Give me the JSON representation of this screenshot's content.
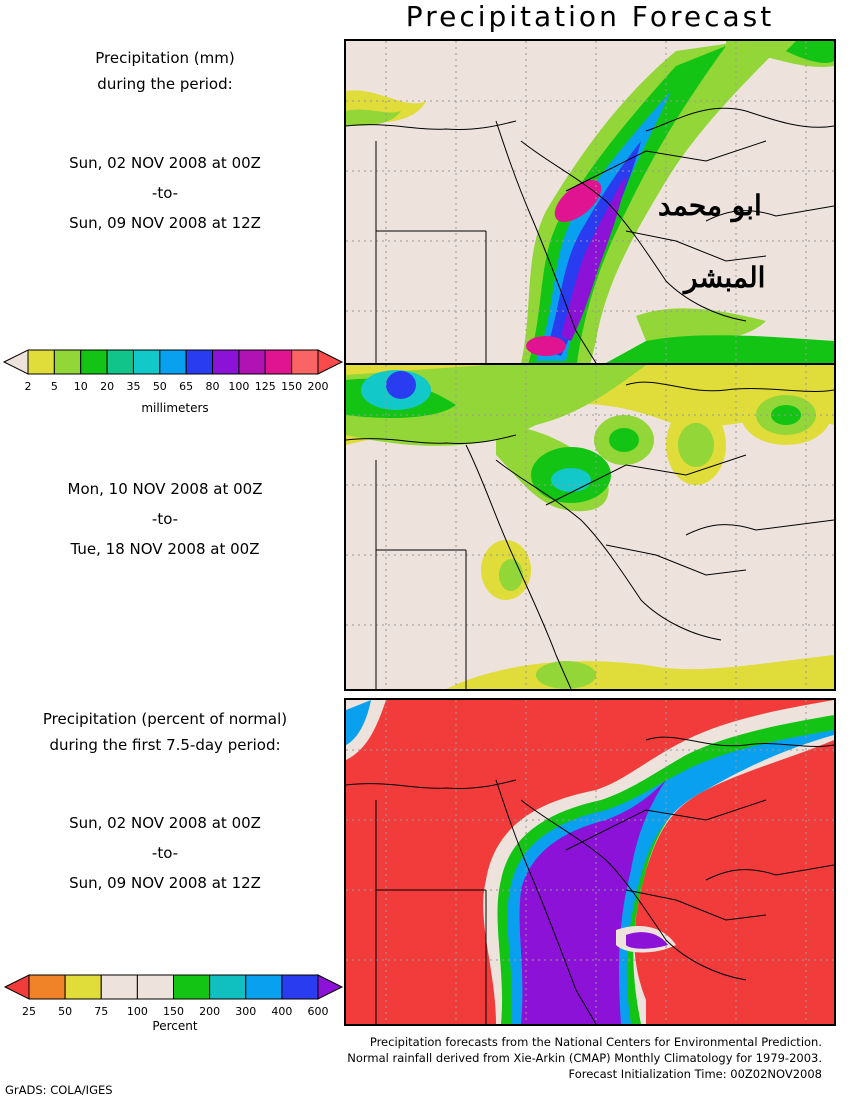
{
  "title": "Precipitation Forecast",
  "top_label": {
    "line1": "Precipitation (mm)",
    "line2": "during the period:"
  },
  "period1": {
    "start": "Sun, 02 NOV 2008 at 00Z",
    "sep": "-to-",
    "end": "Sun, 09 NOV 2008 at 12Z"
  },
  "period2": {
    "start": "Mon, 10 NOV 2008 at 00Z",
    "sep": "-to-",
    "end": "Tue, 18 NOV 2008 at 00Z"
  },
  "bottom_label": {
    "line1": "Precipitation (percent of normal)",
    "line2": "during the first 7.5-day period:"
  },
  "period3": {
    "start": "Sun, 02 NOV 2008 at 00Z",
    "sep": "-to-",
    "end": "Sun, 09 NOV 2008 at 12Z"
  },
  "colorbar_mm": {
    "unit": "millimeters",
    "ticks": [
      "2",
      "5",
      "10",
      "20",
      "35",
      "50",
      "65",
      "80",
      "100",
      "125",
      "150",
      "200"
    ],
    "colors": [
      "#eee3dc",
      "#e0dc3a",
      "#92d638",
      "#14c414",
      "#10c48a",
      "#12c8c8",
      "#0aa0f0",
      "#2a3cf0",
      "#8c12d8",
      "#b012b4",
      "#e01490",
      "#fa6464",
      "#fa4a4a"
    ]
  },
  "colorbar_pct": {
    "unit": "Percent",
    "ticks": [
      "25",
      "50",
      "75",
      "100",
      "150",
      "200",
      "300",
      "400",
      "600"
    ],
    "colors": [
      "#f23c3c",
      "#f08228",
      "#e0dc3a",
      "#eee3dc",
      "#eee3dc",
      "#14c414",
      "#10c0c0",
      "#0aa0f0",
      "#2a3cf0",
      "#8c12d8"
    ]
  },
  "watermark": {
    "line1": "ابو محمد",
    "line2": "المبشر"
  },
  "credits": {
    "line1": "Precipitation forecasts from the National Centers for Environmental Prediction.",
    "line2": "Normal rainfall derived from Xie-Arkin (CMAP) Monthly Climatology for 1979-2003.",
    "line3": "Forecast Initialization Time: 00Z02NOV2008"
  },
  "software": "GrADS: COLA/IGES",
  "colors": {
    "land": "#eee3dc",
    "red_low": "#f23c3c"
  }
}
